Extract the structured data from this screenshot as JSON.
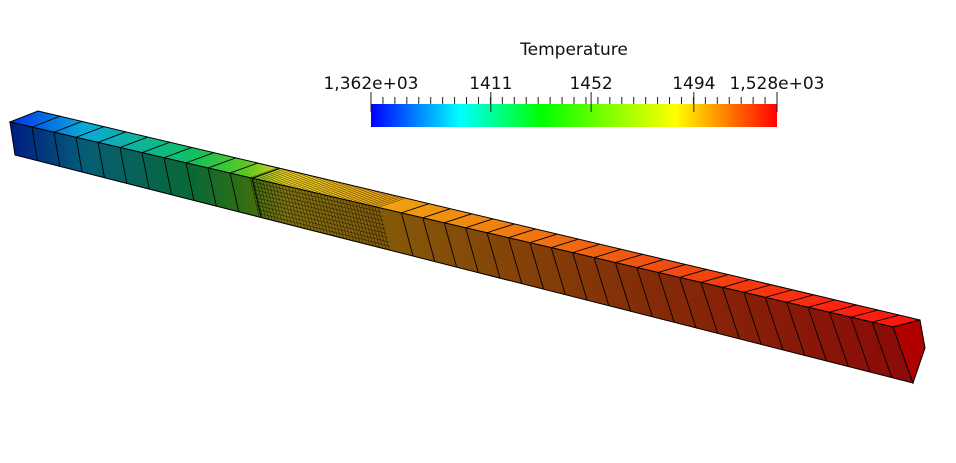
{
  "colorbar": {
    "title": "Temperature",
    "range": [
      1362,
      1528
    ],
    "ticks": [
      {
        "value": 1362,
        "label": "1,362e+03"
      },
      1411,
      1452,
      1494,
      {
        "value": 1528,
        "label": "1,528e+03"
      }
    ]
  }
}
